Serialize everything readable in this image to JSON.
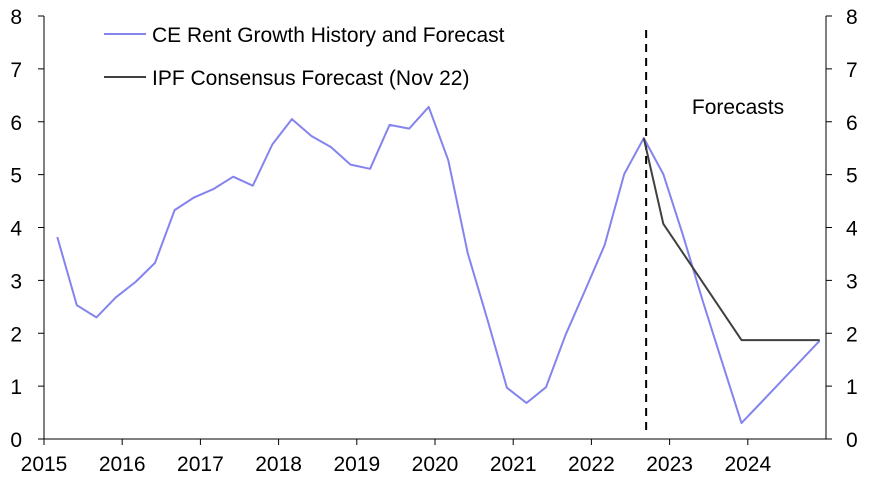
{
  "chart_data": {
    "type": "line",
    "title": "",
    "xlabel": "",
    "ylabel": "",
    "xlim": [
      2015,
      2025
    ],
    "ylim": [
      0,
      8
    ],
    "x_ticks": [
      "2015",
      "2016",
      "2017",
      "2018",
      "2019",
      "2020",
      "2021",
      "2022",
      "2023",
      "2024"
    ],
    "y_ticks_left": [
      "0",
      "1",
      "2",
      "3",
      "4",
      "5",
      "6",
      "7",
      "8"
    ],
    "y_ticks_right": [
      "0",
      "1",
      "2",
      "3",
      "4",
      "5",
      "6",
      "7",
      "8"
    ],
    "legend_position": "top-left",
    "forecast_divider_x": 2022.7,
    "annotation": "Forecasts",
    "series": [
      {
        "name": "CE Rent Growth History and Forecast",
        "color": "#8484ee",
        "points": [
          [
            2015.17,
            3.82
          ],
          [
            2015.42,
            2.53
          ],
          [
            2015.67,
            2.3
          ],
          [
            2015.92,
            2.68
          ],
          [
            2016.17,
            2.97
          ],
          [
            2016.42,
            3.33
          ],
          [
            2016.67,
            4.33
          ],
          [
            2016.92,
            4.57
          ],
          [
            2017.17,
            4.73
          ],
          [
            2017.42,
            4.96
          ],
          [
            2017.67,
            4.79
          ],
          [
            2017.92,
            5.57
          ],
          [
            2018.17,
            6.05
          ],
          [
            2018.42,
            5.73
          ],
          [
            2018.67,
            5.52
          ],
          [
            2018.92,
            5.19
          ],
          [
            2019.17,
            5.11
          ],
          [
            2019.42,
            5.94
          ],
          [
            2019.67,
            5.87
          ],
          [
            2019.92,
            6.28
          ],
          [
            2020.17,
            5.27
          ],
          [
            2020.42,
            3.51
          ],
          [
            2020.67,
            2.26
          ],
          [
            2020.92,
            0.97
          ],
          [
            2021.17,
            0.68
          ],
          [
            2021.42,
            0.98
          ],
          [
            2021.67,
            1.97
          ],
          [
            2021.92,
            2.81
          ],
          [
            2022.17,
            3.67
          ],
          [
            2022.42,
            5.01
          ],
          [
            2022.67,
            5.69
          ],
          [
            2022.92,
            5.01
          ],
          [
            2023.17,
            3.86
          ],
          [
            2023.42,
            2.63
          ],
          [
            2023.67,
            1.46
          ],
          [
            2023.92,
            0.3
          ],
          [
            2024.17,
            0.69
          ],
          [
            2024.42,
            1.08
          ],
          [
            2024.67,
            1.47
          ],
          [
            2024.92,
            1.86
          ]
        ]
      },
      {
        "name": "IPF Consensus Forecast (Nov 22)",
        "color": "#404040",
        "points": [
          [
            2022.67,
            5.69
          ],
          [
            2022.92,
            4.07
          ],
          [
            2023.92,
            1.87
          ],
          [
            2024.92,
            1.87
          ]
        ]
      }
    ]
  }
}
